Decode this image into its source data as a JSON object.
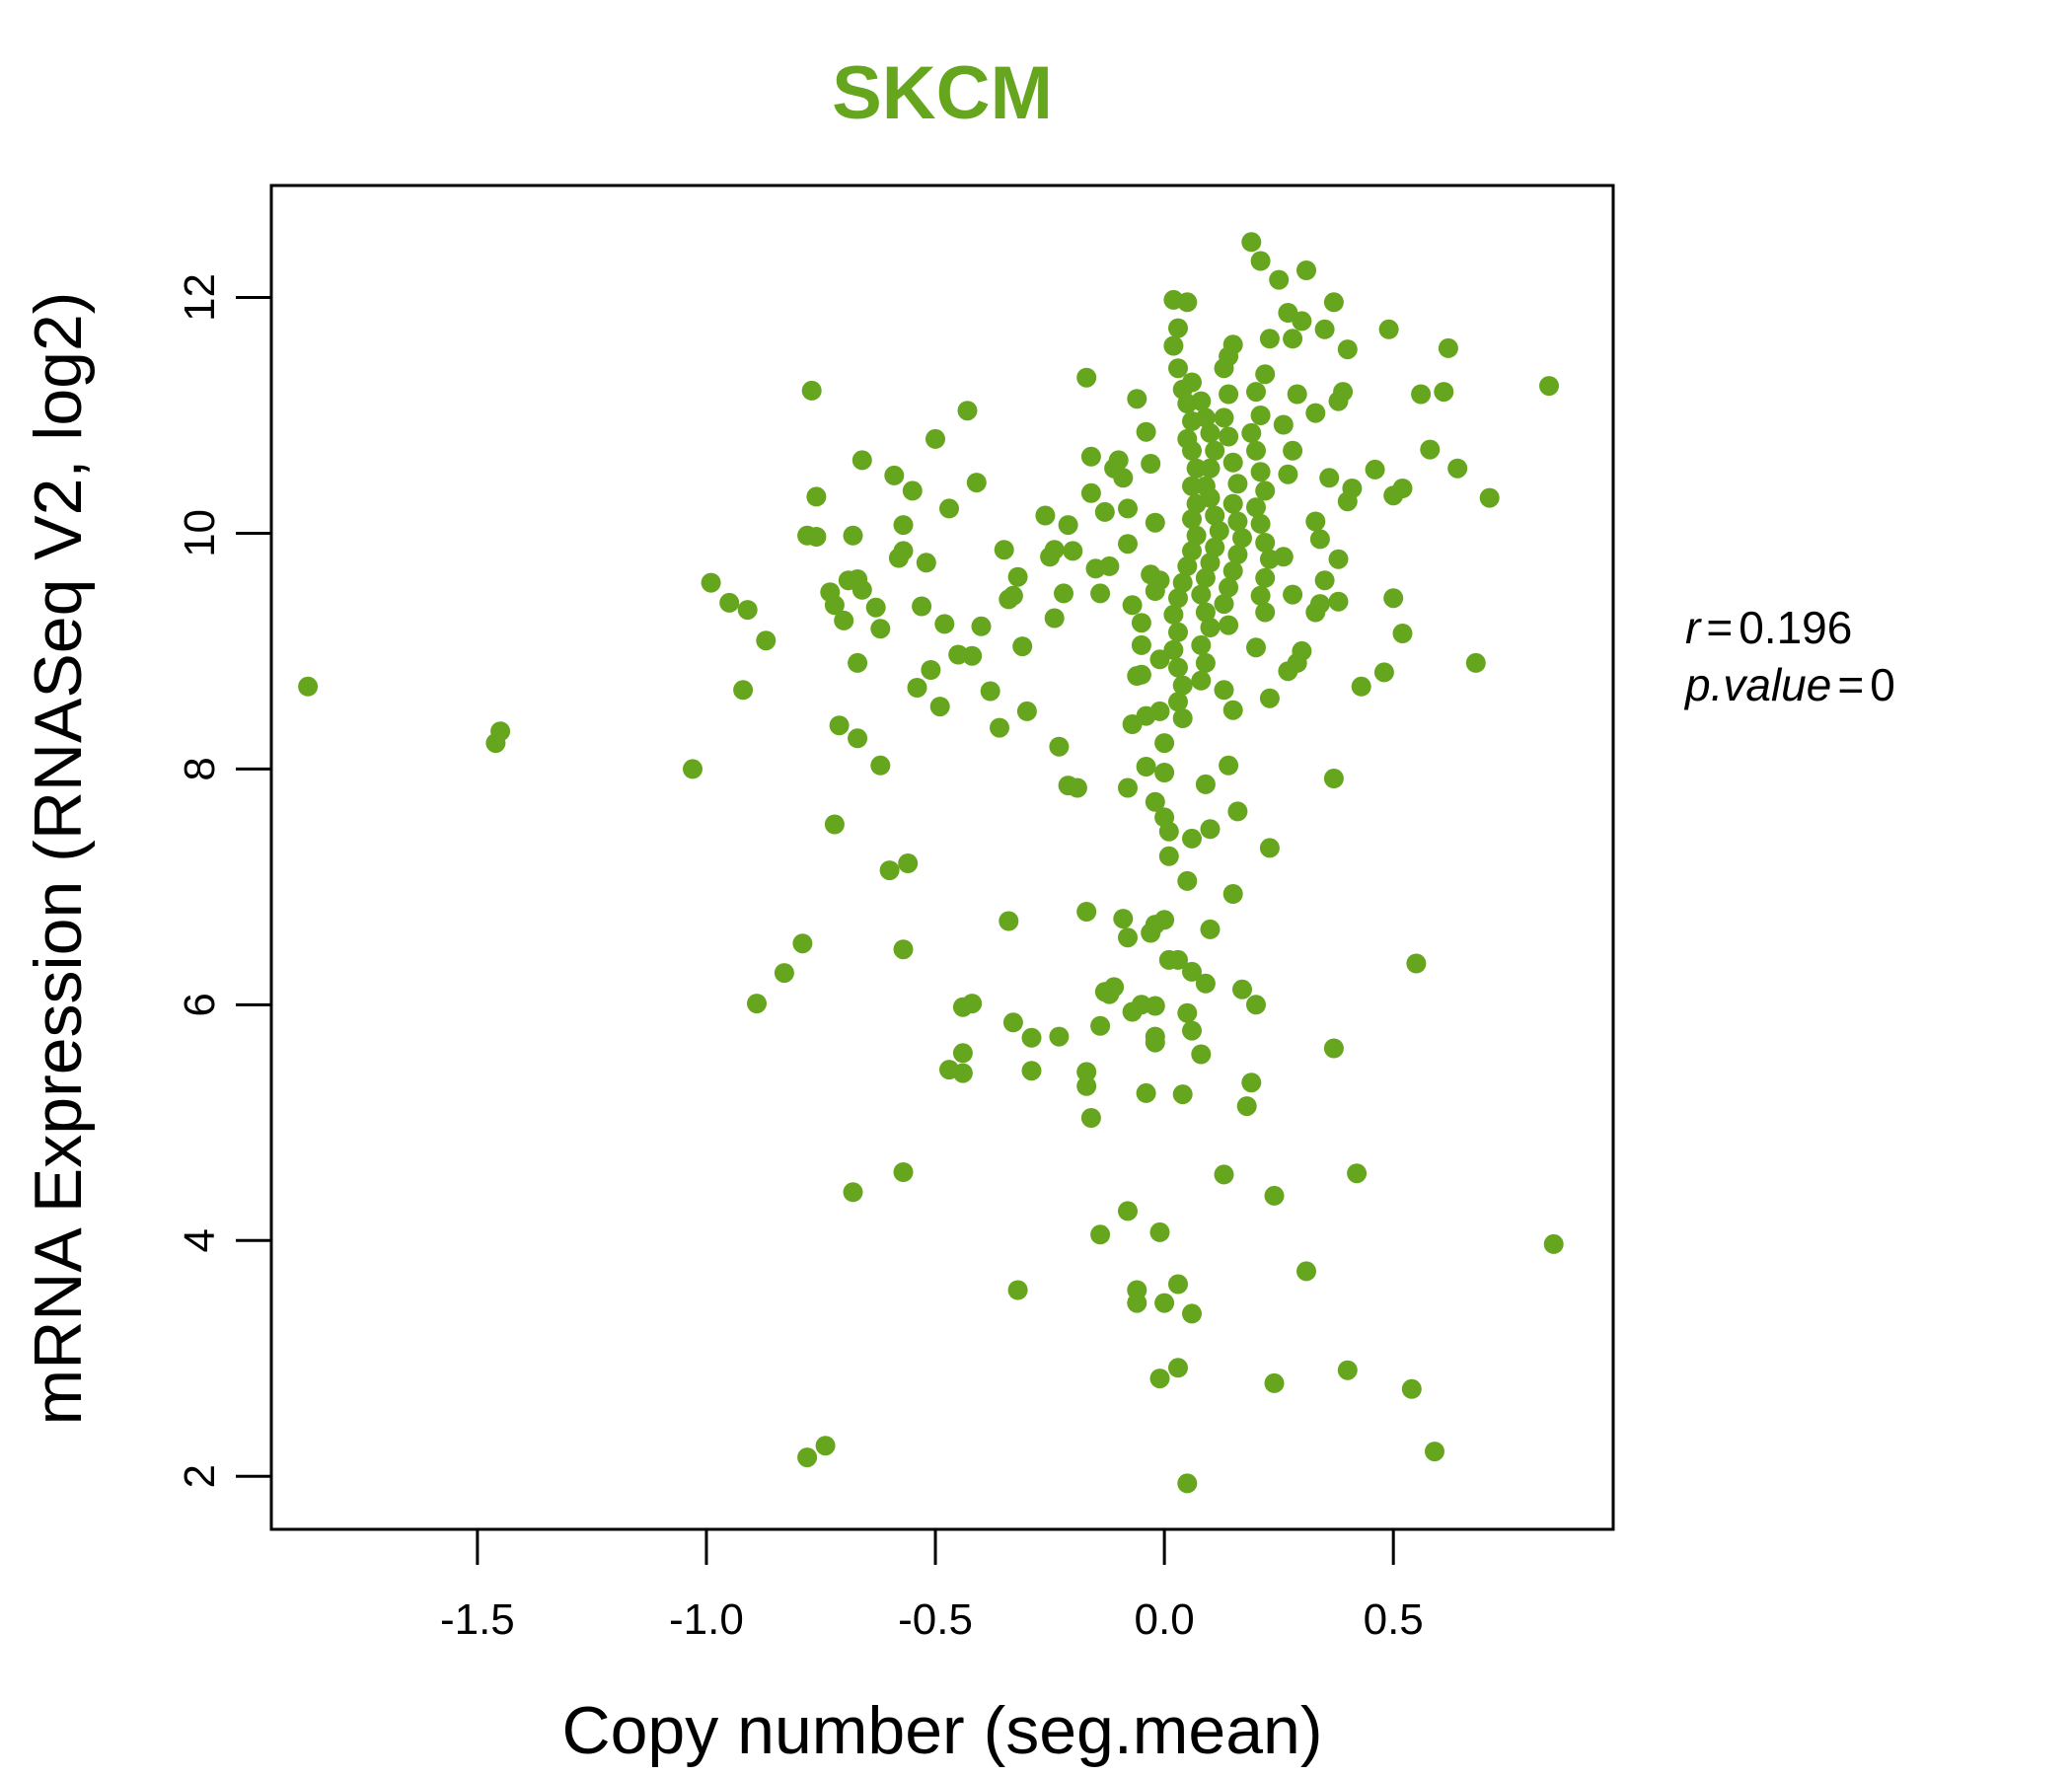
{
  "chart_data": {
    "type": "scatter",
    "title": "SKCM",
    "xlabel": "Copy number (seg.mean)",
    "ylabel": "mRNA Expression (RNASeq V2, log2)",
    "xlim": [
      -1.95,
      0.98
    ],
    "ylim": [
      1.55,
      12.95
    ],
    "x_ticks": [
      -1.5,
      -1.0,
      -0.5,
      0.0,
      0.5
    ],
    "x_tick_labels": [
      "-1.5",
      "-1.0",
      "-0.5",
      "0.0",
      "0.5"
    ],
    "y_ticks": [
      2,
      4,
      6,
      8,
      10,
      12
    ],
    "y_tick_labels": [
      "2",
      "4",
      "6",
      "8",
      "10",
      "12"
    ],
    "grid": false,
    "stats": {
      "r_symbol": "r",
      "r_equals": "=",
      "r_value": "0.196",
      "p_symbol": "p.value",
      "p_equals": "=",
      "p_value": "0"
    },
    "point_color": "#66a61e",
    "title_color": "#66a61e",
    "points": [
      [
        -1.87,
        8.7
      ],
      [
        -1.46,
        8.22
      ],
      [
        -1.45,
        8.32
      ],
      [
        -1.03,
        8.0
      ],
      [
        -0.99,
        9.58
      ],
      [
        -0.95,
        9.41
      ],
      [
        -0.91,
        9.35
      ],
      [
        -0.92,
        8.67
      ],
      [
        -0.87,
        9.09
      ],
      [
        -0.89,
        6.01
      ],
      [
        -0.83,
        6.27
      ],
      [
        -0.79,
        6.52
      ],
      [
        -0.78,
        2.16
      ],
      [
        -0.74,
        2.26
      ],
      [
        -0.78,
        9.98
      ],
      [
        -0.76,
        9.97
      ],
      [
        -0.76,
        10.31
      ],
      [
        -0.77,
        11.21
      ],
      [
        -0.73,
        9.5
      ],
      [
        -0.72,
        9.39
      ],
      [
        -0.7,
        9.26
      ],
      [
        -0.69,
        9.6
      ],
      [
        -0.68,
        9.98
      ],
      [
        -0.67,
        9.61
      ],
      [
        -0.66,
        9.52
      ],
      [
        -0.66,
        10.62
      ],
      [
        -0.71,
        8.37
      ],
      [
        -0.67,
        8.26
      ],
      [
        -0.67,
        8.9
      ],
      [
        -0.72,
        7.53
      ],
      [
        -0.63,
        9.37
      ],
      [
        -0.62,
        9.19
      ],
      [
        -0.62,
        8.03
      ],
      [
        -0.59,
        10.49
      ],
      [
        -0.58,
        9.79
      ],
      [
        -0.57,
        9.85
      ],
      [
        -0.57,
        10.07
      ],
      [
        -0.55,
        10.36
      ],
      [
        -0.53,
        9.38
      ],
      [
        -0.52,
        9.75
      ],
      [
        -0.54,
        8.69
      ],
      [
        -0.51,
        8.84
      ],
      [
        -0.5,
        10.8
      ],
      [
        -0.49,
        8.53
      ],
      [
        -0.48,
        9.23
      ],
      [
        -0.47,
        10.21
      ],
      [
        -0.45,
        8.97
      ],
      [
        -0.43,
        11.04
      ],
      [
        -0.42,
        8.96
      ],
      [
        -0.41,
        10.43
      ],
      [
        -0.4,
        9.21
      ],
      [
        -0.38,
        8.66
      ],
      [
        -0.36,
        8.35
      ],
      [
        -0.35,
        9.86
      ],
      [
        -0.34,
        9.44
      ],
      [
        -0.33,
        9.47
      ],
      [
        -0.32,
        9.63
      ],
      [
        -0.31,
        9.04
      ],
      [
        -0.3,
        8.49
      ],
      [
        -0.6,
        7.14
      ],
      [
        -0.56,
        7.2
      ],
      [
        -0.57,
        6.47
      ],
      [
        -0.44,
        5.98
      ],
      [
        -0.42,
        6.01
      ],
      [
        -0.47,
        5.45
      ],
      [
        -0.44,
        5.42
      ],
      [
        -0.44,
        5.59
      ],
      [
        -0.34,
        6.71
      ],
      [
        -0.33,
        5.85
      ],
      [
        -0.29,
        5.72
      ],
      [
        -0.29,
        5.44
      ],
      [
        -0.32,
        3.58
      ],
      [
        -0.57,
        4.58
      ],
      [
        -0.68,
        4.41
      ],
      [
        -0.26,
        10.15
      ],
      [
        -0.25,
        9.8
      ],
      [
        -0.24,
        9.86
      ],
      [
        -0.24,
        9.28
      ],
      [
        -0.23,
        8.19
      ],
      [
        -0.22,
        9.49
      ],
      [
        -0.21,
        10.07
      ],
      [
        -0.2,
        9.85
      ],
      [
        -0.21,
        7.86
      ],
      [
        -0.19,
        7.84
      ],
      [
        -0.17,
        11.32
      ],
      [
        -0.16,
        10.65
      ],
      [
        -0.16,
        10.34
      ],
      [
        -0.15,
        9.7
      ],
      [
        -0.14,
        9.49
      ],
      [
        -0.13,
        10.18
      ],
      [
        -0.12,
        9.72
      ],
      [
        -0.11,
        10.55
      ],
      [
        -0.1,
        10.62
      ],
      [
        -0.09,
        10.47
      ],
      [
        -0.08,
        10.21
      ],
      [
        -0.08,
        9.91
      ],
      [
        -0.07,
        9.39
      ],
      [
        -0.06,
        8.79
      ],
      [
        -0.05,
        9.24
      ],
      [
        -0.05,
        9.05
      ],
      [
        -0.06,
        11.14
      ],
      [
        -0.04,
        10.86
      ],
      [
        -0.03,
        10.59
      ],
      [
        -0.03,
        9.65
      ],
      [
        -0.02,
        9.51
      ],
      [
        -0.02,
        10.09
      ],
      [
        -0.01,
        9.6
      ],
      [
        -0.01,
        8.93
      ],
      [
        -0.01,
        8.49
      ],
      [
        0.0,
        8.22
      ],
      [
        0.0,
        7.97
      ],
      [
        -0.02,
        7.72
      ],
      [
        0.0,
        7.59
      ],
      [
        0.01,
        7.47
      ],
      [
        0.01,
        7.26
      ],
      [
        0.02,
        11.98
      ],
      [
        0.03,
        11.74
      ],
      [
        0.02,
        11.59
      ],
      [
        0.03,
        11.4
      ],
      [
        0.04,
        11.22
      ],
      [
        0.05,
        11.96
      ],
      [
        0.06,
        11.28
      ],
      [
        0.05,
        11.1
      ],
      [
        0.06,
        10.95
      ],
      [
        0.05,
        10.8
      ],
      [
        0.06,
        10.7
      ],
      [
        0.07,
        10.55
      ],
      [
        0.06,
        10.4
      ],
      [
        0.07,
        10.25
      ],
      [
        0.06,
        10.12
      ],
      [
        0.07,
        9.98
      ],
      [
        0.06,
        9.85
      ],
      [
        0.05,
        9.72
      ],
      [
        0.04,
        9.58
      ],
      [
        0.03,
        9.45
      ],
      [
        0.02,
        9.31
      ],
      [
        0.03,
        9.16
      ],
      [
        0.02,
        9.01
      ],
      [
        0.03,
        8.86
      ],
      [
        0.04,
        8.71
      ],
      [
        0.03,
        8.57
      ],
      [
        0.04,
        8.43
      ],
      [
        0.05,
        7.05
      ],
      [
        0.06,
        7.41
      ],
      [
        0.08,
        11.12
      ],
      [
        0.09,
        10.98
      ],
      [
        0.1,
        10.85
      ],
      [
        0.11,
        10.7
      ],
      [
        0.1,
        10.55
      ],
      [
        0.09,
        10.4
      ],
      [
        0.1,
        10.3
      ],
      [
        0.11,
        10.15
      ],
      [
        0.12,
        10.02
      ],
      [
        0.11,
        9.88
      ],
      [
        0.1,
        9.75
      ],
      [
        0.09,
        9.62
      ],
      [
        0.08,
        9.48
      ],
      [
        0.09,
        9.33
      ],
      [
        0.1,
        9.2
      ],
      [
        0.08,
        9.05
      ],
      [
        0.09,
        8.9
      ],
      [
        0.08,
        8.75
      ],
      [
        0.09,
        7.87
      ],
      [
        0.1,
        7.49
      ],
      [
        0.13,
        11.4
      ],
      [
        0.14,
        11.5
      ],
      [
        0.15,
        11.6
      ],
      [
        0.14,
        11.18
      ],
      [
        0.13,
        10.98
      ],
      [
        0.14,
        10.82
      ],
      [
        0.15,
        10.6
      ],
      [
        0.16,
        10.42
      ],
      [
        0.15,
        10.25
      ],
      [
        0.16,
        10.1
      ],
      [
        0.17,
        9.96
      ],
      [
        0.16,
        9.82
      ],
      [
        0.15,
        9.68
      ],
      [
        0.14,
        9.54
      ],
      [
        0.13,
        9.4
      ],
      [
        0.14,
        9.22
      ],
      [
        0.13,
        8.67
      ],
      [
        0.15,
        8.5
      ],
      [
        0.14,
        8.03
      ],
      [
        0.16,
        7.64
      ],
      [
        0.19,
        12.47
      ],
      [
        0.21,
        12.31
      ],
      [
        0.23,
        11.65
      ],
      [
        0.22,
        11.35
      ],
      [
        0.2,
        11.2
      ],
      [
        0.21,
        11.0
      ],
      [
        0.19,
        10.85
      ],
      [
        0.2,
        10.7
      ],
      [
        0.21,
        10.52
      ],
      [
        0.22,
        10.36
      ],
      [
        0.2,
        10.22
      ],
      [
        0.21,
        10.08
      ],
      [
        0.22,
        9.92
      ],
      [
        0.23,
        9.78
      ],
      [
        0.22,
        9.62
      ],
      [
        0.21,
        9.47
      ],
      [
        0.22,
        9.33
      ],
      [
        0.2,
        9.03
      ],
      [
        0.23,
        8.6
      ],
      [
        0.23,
        7.33
      ],
      [
        0.25,
        12.15
      ],
      [
        0.27,
        11.87
      ],
      [
        0.28,
        11.65
      ],
      [
        0.29,
        11.18
      ],
      [
        0.3,
        11.8
      ],
      [
        0.31,
        12.23
      ],
      [
        0.26,
        10.92
      ],
      [
        0.28,
        10.7
      ],
      [
        0.27,
        10.5
      ],
      [
        0.26,
        9.8
      ],
      [
        0.28,
        9.48
      ],
      [
        0.3,
        9.0
      ],
      [
        0.29,
        8.9
      ],
      [
        0.27,
        8.83
      ],
      [
        0.33,
        11.02
      ],
      [
        0.35,
        11.73
      ],
      [
        0.37,
        11.96
      ],
      [
        0.38,
        11.12
      ],
      [
        0.36,
        10.47
      ],
      [
        0.33,
        10.1
      ],
      [
        0.34,
        9.95
      ],
      [
        0.35,
        9.6
      ],
      [
        0.33,
        9.33
      ],
      [
        0.34,
        9.4
      ],
      [
        0.37,
        7.92
      ],
      [
        0.39,
        11.2
      ],
      [
        0.4,
        11.56
      ],
      [
        0.41,
        10.38
      ],
      [
        0.4,
        10.27
      ],
      [
        0.38,
        9.78
      ],
      [
        0.38,
        9.42
      ],
      [
        0.43,
        8.7
      ],
      [
        0.46,
        10.54
      ],
      [
        0.49,
        11.73
      ],
      [
        0.48,
        8.82
      ],
      [
        0.5,
        10.32
      ],
      [
        0.5,
        9.45
      ],
      [
        0.52,
        10.38
      ],
      [
        0.52,
        9.15
      ],
      [
        0.56,
        11.18
      ],
      [
        0.58,
        10.71
      ],
      [
        0.61,
        11.2
      ],
      [
        0.62,
        11.57
      ],
      [
        0.64,
        10.55
      ],
      [
        0.68,
        8.9
      ],
      [
        0.71,
        10.3
      ],
      [
        0.84,
        11.25
      ],
      [
        0.85,
        3.97
      ],
      [
        -0.17,
        6.79
      ],
      [
        -0.12,
        6.09
      ],
      [
        -0.13,
        6.11
      ],
      [
        -0.11,
        6.15
      ],
      [
        -0.09,
        6.73
      ],
      [
        -0.08,
        6.57
      ],
      [
        -0.07,
        5.94
      ],
      [
        -0.05,
        6.0
      ],
      [
        -0.03,
        6.61
      ],
      [
        -0.02,
        6.68
      ],
      [
        0.0,
        6.72
      ],
      [
        0.01,
        6.38
      ],
      [
        0.03,
        6.38
      ],
      [
        0.06,
        6.28
      ],
      [
        0.09,
        6.18
      ],
      [
        0.1,
        6.64
      ],
      [
        0.15,
        6.94
      ],
      [
        0.17,
        6.13
      ],
      [
        0.2,
        6.0
      ],
      [
        -0.02,
        5.99
      ],
      [
        -0.02,
        5.73
      ],
      [
        -0.02,
        5.68
      ],
      [
        0.05,
        5.93
      ],
      [
        0.06,
        5.78
      ],
      [
        0.08,
        5.58
      ],
      [
        0.04,
        5.24
      ],
      [
        -0.04,
        5.25
      ],
      [
        -0.14,
        5.82
      ],
      [
        -0.17,
        5.43
      ],
      [
        -0.17,
        5.31
      ],
      [
        -0.16,
        5.04
      ],
      [
        -0.23,
        5.73
      ],
      [
        0.19,
        5.34
      ],
      [
        0.18,
        5.14
      ],
      [
        0.37,
        5.63
      ],
      [
        0.55,
        6.35
      ],
      [
        0.13,
        4.56
      ],
      [
        0.24,
        4.38
      ],
      [
        0.42,
        4.57
      ],
      [
        -0.08,
        4.25
      ],
      [
        -0.14,
        4.05
      ],
      [
        -0.01,
        4.07
      ],
      [
        -0.06,
        3.58
      ],
      [
        -0.06,
        3.47
      ],
      [
        0.03,
        3.63
      ],
      [
        0.0,
        3.47
      ],
      [
        0.06,
        3.38
      ],
      [
        0.31,
        3.74
      ],
      [
        -0.01,
        2.83
      ],
      [
        0.03,
        2.92
      ],
      [
        0.24,
        2.79
      ],
      [
        0.4,
        2.9
      ],
      [
        0.54,
        2.74
      ],
      [
        0.59,
        2.21
      ],
      [
        0.05,
        1.94
      ],
      [
        -0.07,
        8.38
      ],
      [
        -0.05,
        8.8
      ],
      [
        -0.04,
        8.02
      ],
      [
        -0.08,
        7.84
      ],
      [
        -0.04,
        8.45
      ]
    ]
  }
}
